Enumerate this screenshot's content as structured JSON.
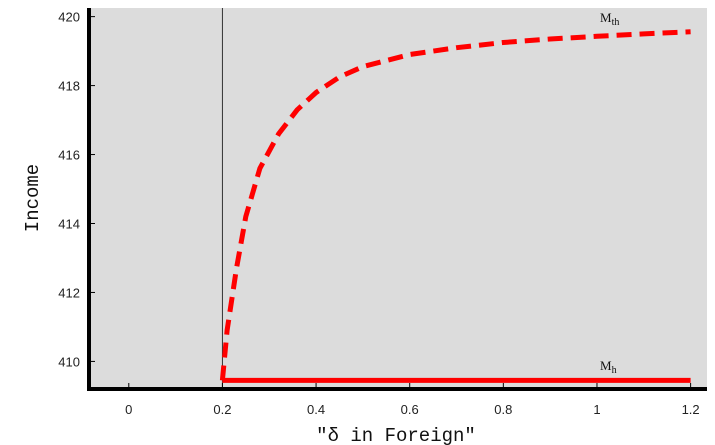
{
  "chart_data": {
    "type": "line",
    "xlabel": "\"δ in Foreign\"",
    "ylabel": "Income",
    "xlim": [
      -0.085,
      1.235
    ],
    "ylim": [
      409.2,
      420.25
    ],
    "x_ticks": [
      {
        "value": 0,
        "label": "0"
      },
      {
        "value": 0.2,
        "label": "0.2"
      },
      {
        "value": 0.4,
        "label": "0.4"
      },
      {
        "value": 0.6,
        "label": "0.6"
      },
      {
        "value": 0.8,
        "label": "0.8"
      },
      {
        "value": 1,
        "label": "1"
      },
      {
        "value": 1.2,
        "label": "1.2"
      }
    ],
    "y_ticks": [
      {
        "value": 410,
        "label": "410"
      },
      {
        "value": 412,
        "label": "412"
      },
      {
        "value": 414,
        "label": "414"
      },
      {
        "value": 416,
        "label": "416"
      },
      {
        "value": 418,
        "label": "418"
      },
      {
        "value": 420,
        "label": "420"
      }
    ],
    "vertical_line_x": 0.2,
    "background": "#dcdcdc",
    "series": [
      {
        "name": "M",
        "subscript": "th",
        "style": "dashed",
        "color": "#ff0000",
        "x": [
          0.2,
          0.21,
          0.23,
          0.25,
          0.28,
          0.32,
          0.36,
          0.4,
          0.45,
          0.5,
          0.6,
          0.7,
          0.8,
          0.9,
          1.0,
          1.1,
          1.2
        ],
        "y": [
          409.45,
          410.9,
          412.7,
          414.2,
          415.6,
          416.6,
          417.3,
          417.8,
          418.25,
          418.55,
          418.9,
          419.1,
          419.25,
          419.35,
          419.43,
          419.5,
          419.56
        ]
      },
      {
        "name": "M",
        "subscript": "h",
        "style": "solid",
        "color": "#ff0000",
        "x": [
          0.2,
          1.2
        ],
        "y": [
          409.45,
          409.45
        ]
      }
    ]
  }
}
